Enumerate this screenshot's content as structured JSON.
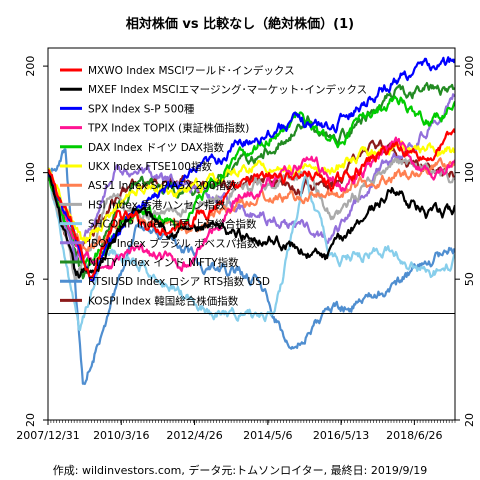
{
  "chart_data": {
    "type": "line",
    "title": "相対株価 vs 比較なし（絶対株価）(1)",
    "xlabel": "",
    "ylabel": "",
    "x_ticks": [
      "2007/12/31",
      "2010/3/16",
      "2012/4/26",
      "2014/5/6",
      "2016/5/13",
      "2018/6/26"
    ],
    "x_range": [
      2008.0,
      2019.72
    ],
    "y_scale": "log",
    "y_ticks": [
      20,
      50,
      100,
      200
    ],
    "ylim": [
      20,
      225
    ],
    "reference_line": 40,
    "legend_position": "top-left",
    "grid": false,
    "caption": "作成: wildinvestors.com, データ元:トムソンロイター, 最終日: 2019/9/19",
    "series": [
      {
        "name": "MXWO Index MSCIワールド･インデックス",
        "color": "#ff0000",
        "x": [
          2008.0,
          2008.7,
          2009.2,
          2010.0,
          2011.5,
          2012.5,
          2014.0,
          2015.5,
          2016.2,
          2018.0,
          2019.0,
          2019.72
        ],
        "values": [
          100,
          70,
          52,
          75,
          70,
          78,
          95,
          100,
          92,
          120,
          110,
          130
        ]
      },
      {
        "name": "MXEF Index MSCIエマージング･マーケット･インデックス",
        "color": "#000000",
        "x": [
          2008.0,
          2008.8,
          2009.5,
          2010.5,
          2011.5,
          2013.0,
          2014.5,
          2016.0,
          2017.0,
          2018.0,
          2019.0,
          2019.72
        ],
        "values": [
          100,
          50,
          55,
          80,
          70,
          68,
          65,
          57,
          75,
          90,
          75,
          78
        ]
      },
      {
        "name": "SPX Index S-P 500種",
        "color": "#0000ff",
        "x": [
          2008.0,
          2008.8,
          2009.2,
          2010.5,
          2012.0,
          2013.5,
          2015.0,
          2016.2,
          2017.5,
          2018.5,
          2019.72
        ],
        "values": [
          100,
          65,
          50,
          80,
          95,
          120,
          140,
          135,
          170,
          195,
          205
        ]
      },
      {
        "name": "TPX Index TOPIX (東証株価指数)",
        "color": "#ff1493",
        "x": [
          2008.0,
          2008.8,
          2009.5,
          2010.5,
          2012.0,
          2013.5,
          2015.5,
          2016.5,
          2018.0,
          2019.0,
          2019.72
        ],
        "values": [
          100,
          60,
          55,
          60,
          55,
          85,
          110,
          90,
          120,
          100,
          105
        ]
      },
      {
        "name": "DAX Index ドイツ DAX指数",
        "color": "#00cc00",
        "x": [
          2008.0,
          2008.8,
          2009.2,
          2010.5,
          2011.8,
          2013.0,
          2015.2,
          2016.2,
          2018.0,
          2019.0,
          2019.72
        ],
        "values": [
          100,
          60,
          55,
          80,
          70,
          100,
          145,
          120,
          165,
          140,
          155
        ]
      },
      {
        "name": "UKX Index FTSE100指数",
        "color": "#ffff00",
        "x": [
          2008.0,
          2009.0,
          2010.5,
          2012.0,
          2014.0,
          2016.0,
          2018.0,
          2019.72
        ],
        "values": [
          100,
          62,
          90,
          88,
          105,
          100,
          120,
          115
        ]
      },
      {
        "name": "AS51 Index S-P/ASX 200指数",
        "color": "#ff7f50",
        "x": [
          2008.0,
          2009.0,
          2010.5,
          2012.0,
          2014.0,
          2016.0,
          2018.0,
          2019.72
        ],
        "values": [
          100,
          60,
          75,
          70,
          85,
          85,
          100,
          105
        ]
      },
      {
        "name": "HSI Index 香港ハンセン指数",
        "color": "#aaaaaa",
        "x": [
          2008.0,
          2008.8,
          2009.8,
          2011.0,
          2013.0,
          2015.3,
          2016.2,
          2018.0,
          2019.72
        ],
        "values": [
          100,
          50,
          85,
          75,
          85,
          100,
          75,
          110,
          95
        ]
      },
      {
        "name": "SHCOMP Index 中国 上海総合指数",
        "color": "#87ceeb",
        "x": [
          2008.0,
          2008.9,
          2009.6,
          2011.0,
          2012.8,
          2014.5,
          2015.4,
          2016.2,
          2018.0,
          2019.0,
          2019.72
        ],
        "values": [
          100,
          35,
          62,
          52,
          40,
          40,
          95,
          57,
          60,
          50,
          57
        ]
      },
      {
        "name": "IBOV Index ブラジル ボベスパ指数",
        "color": "#9370db",
        "x": [
          2008.0,
          2008.8,
          2010.0,
          2011.5,
          2013.5,
          2015.5,
          2016.2,
          2017.5,
          2018.5,
          2019.72
        ],
        "values": [
          100,
          55,
          105,
          95,
          80,
          70,
          65,
          100,
          120,
          165
        ]
      },
      {
        "name": "NIFTY Index インド NIFTY指数",
        "color": "#228b22",
        "x": [
          2008.0,
          2009.0,
          2010.5,
          2012.0,
          2014.0,
          2015.5,
          2016.2,
          2018.0,
          2019.72
        ],
        "values": [
          100,
          50,
          95,
          85,
          110,
          140,
          120,
          170,
          175
        ]
      },
      {
        "name": "RTSIUSD Index ロシア RTS指数 USD",
        "color": "#4f8ed0",
        "x": [
          2008.0,
          2008.5,
          2009.0,
          2009.3,
          2010.5,
          2011.5,
          2012.5,
          2014.0,
          2015.0,
          2016.0,
          2017.5,
          2018.5,
          2019.72
        ],
        "values": [
          100,
          115,
          25,
          30,
          70,
          65,
          55,
          50,
          32,
          40,
          45,
          52,
          62
        ]
      },
      {
        "name": "KOSPI Index 韓国総合株価指数",
        "color": "#8b1a1a",
        "x": [
          2008.0,
          2008.8,
          2009.5,
          2010.5,
          2012.0,
          2014.0,
          2016.0,
          2017.5,
          2018.5,
          2019.72
        ],
        "values": [
          100,
          55,
          75,
          95,
          95,
          95,
          90,
          120,
          105,
          100
        ]
      }
    ]
  }
}
